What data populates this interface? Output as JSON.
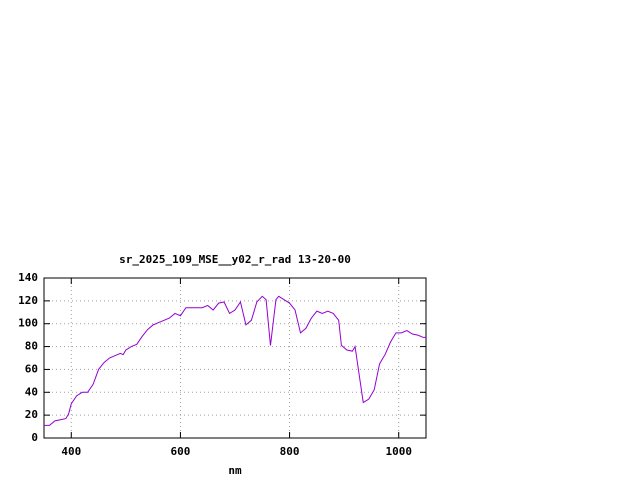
{
  "chart_data": {
    "type": "line",
    "title": "sr_2025_109_MSE__y02_r_rad 13-20-00",
    "x_label": "nm",
    "xlim": [
      350,
      1050
    ],
    "xticks": [
      400,
      600,
      800,
      1000
    ],
    "ylim": [
      0,
      140
    ],
    "yticks": [
      0,
      20,
      40,
      60,
      80,
      100,
      120,
      140
    ],
    "grid": true,
    "series": [
      {
        "color": "#9400d3",
        "x": [
          350,
          360,
          370,
          380,
          390,
          395,
          400,
          410,
          420,
          430,
          440,
          450,
          460,
          470,
          480,
          490,
          495,
          500,
          510,
          520,
          530,
          540,
          550,
          560,
          570,
          580,
          590,
          600,
          610,
          620,
          630,
          640,
          650,
          660,
          670,
          680,
          690,
          700,
          710,
          720,
          730,
          740,
          750,
          757,
          765,
          775,
          780,
          790,
          800,
          810,
          820,
          830,
          840,
          850,
          860,
          870,
          880,
          890,
          895,
          905,
          915,
          920,
          935,
          945,
          955,
          965,
          975,
          985,
          995,
          1005,
          1015,
          1025,
          1035,
          1045,
          1050
        ],
        "values": [
          11,
          11,
          15,
          16,
          17,
          21,
          30,
          37,
          40,
          40,
          47,
          60,
          66,
          70,
          72,
          74,
          73,
          77,
          80,
          82,
          89,
          95,
          99,
          101,
          103,
          105,
          109,
          107,
          114,
          114,
          114,
          114,
          116,
          112,
          118,
          119,
          109,
          112,
          119,
          99,
          103,
          119,
          124,
          121,
          81,
          121,
          124,
          121,
          118,
          112,
          92,
          96,
          105,
          111,
          109,
          111,
          109,
          103,
          81,
          77,
          76,
          80,
          31,
          34,
          42,
          65,
          73,
          84,
          92,
          92,
          94,
          91,
          90,
          88,
          88
        ]
      }
    ]
  }
}
